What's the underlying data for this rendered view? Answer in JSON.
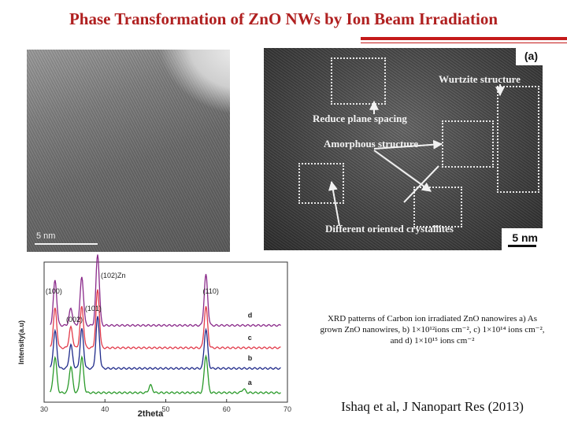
{
  "slide": {
    "title": "Phase Transformation of ZnO NWs by Ion Beam Irradiation",
    "accent_color": "#c41a1a"
  },
  "tem_left": {
    "scale_label": "5 nm"
  },
  "tem_right": {
    "panel_label": "(a)",
    "annotations": {
      "wurtzite": "Wurtzite structure",
      "reduce": "Reduce plane spacing",
      "amorphous": "Amorphous structure",
      "oriented": "Different oriented crystallites"
    },
    "scale_label": "5 nm"
  },
  "chart_data": {
    "type": "line",
    "xlabel": "2theta",
    "ylabel": "Intensity(a.u)",
    "xlim": [
      30,
      70
    ],
    "x_ticks": [
      30,
      40,
      50,
      60,
      70
    ],
    "peak_labels": [
      {
        "text": "(100)",
        "x": 31.8
      },
      {
        "text": "(002)",
        "x": 34.4
      },
      {
        "text": "(101)",
        "x": 36.2
      },
      {
        "text": "(102)Zn",
        "x": 38.8
      },
      {
        "text": "(110)",
        "x": 56.6
      }
    ],
    "series": [
      {
        "name": "a",
        "color": "#2a9a2a",
        "offset": 0,
        "peaks": [
          [
            31.8,
            38
          ],
          [
            34.4,
            28
          ],
          [
            36.2,
            38
          ],
          [
            47.5,
            8
          ],
          [
            56.6,
            40
          ],
          [
            62.8,
            4
          ]
        ]
      },
      {
        "name": "b",
        "color": "#1f2a8a",
        "offset": 26,
        "peaks": [
          [
            31.8,
            40
          ],
          [
            34.4,
            25
          ],
          [
            36.2,
            42
          ],
          [
            38.8,
            55
          ],
          [
            56.6,
            42
          ]
        ]
      },
      {
        "name": "c",
        "color": "#e23a4a",
        "offset": 48,
        "peaks": [
          [
            31.8,
            42
          ],
          [
            34.4,
            22
          ],
          [
            36.2,
            44
          ],
          [
            38.8,
            62
          ],
          [
            56.6,
            44
          ]
        ]
      },
      {
        "name": "d",
        "color": "#8a2a8a",
        "offset": 72,
        "peaks": [
          [
            31.8,
            48
          ],
          [
            34.4,
            18
          ],
          [
            36.2,
            52
          ],
          [
            38.8,
            76
          ],
          [
            56.6,
            54
          ]
        ]
      }
    ]
  },
  "caption": {
    "line1": "XRD patterns of Carbon ion irradiated ZnO nanowires a) As",
    "line2": "grown ZnO nanowires, b) 1×10¹²ions cm⁻², c) 1×10¹⁴ ions cm⁻²,",
    "line3": "and d) 1×10¹⁵ ions cm⁻²"
  },
  "citation": "Ishaq et al, J Nanopart Res (2013)"
}
